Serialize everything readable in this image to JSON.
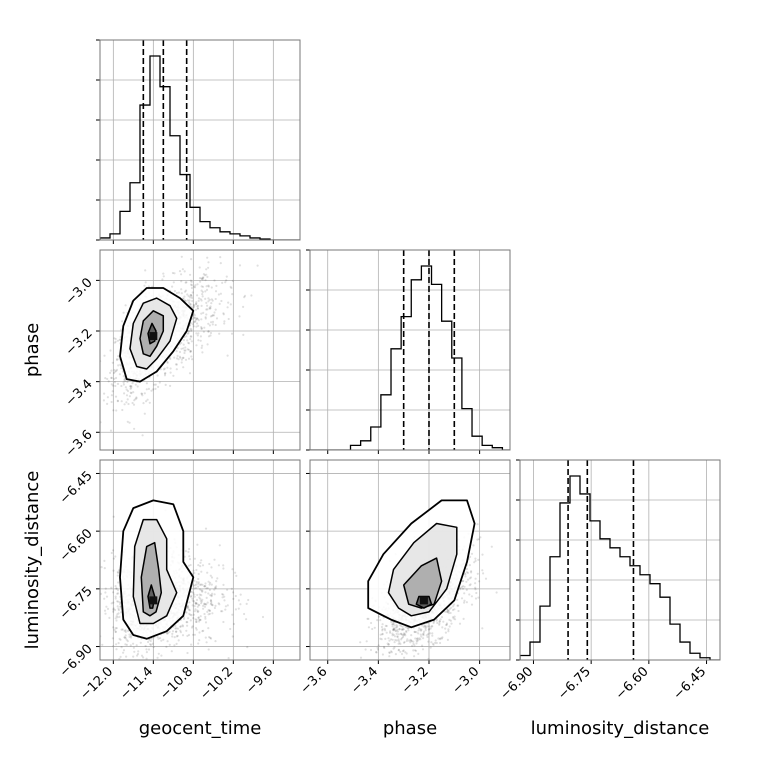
{
  "chart_data": {
    "type": "corner",
    "parameters": [
      "geocent_time",
      "phase",
      "luminosity_distance"
    ],
    "axis_labels": {
      "x": [
        "geocent_time",
        "phase",
        "luminosity_distance"
      ],
      "y": [
        "",
        "phase",
        "luminosity_distance"
      ]
    },
    "ranges": {
      "geocent_time": [
        -12.2,
        -9.2
      ],
      "phase": [
        -3.67,
        -2.88
      ],
      "luminosity_distance": [
        -6.935,
        -6.415
      ]
    },
    "ticks": {
      "geocent_time": [
        -12.0,
        -11.4,
        -10.8,
        -10.2,
        -9.6
      ],
      "phase": [
        -3.6,
        -3.4,
        -3.2,
        -3.0
      ],
      "luminosity_distance": [
        -6.9,
        -6.75,
        -6.6,
        -6.45
      ]
    },
    "tick_labels": {
      "geocent_time": [
        "−12.0",
        "−11.4",
        "−10.8",
        "−10.2",
        "−9.6"
      ],
      "phase": [
        "−3.6",
        "−3.4",
        "−3.2",
        "−3.0"
      ],
      "luminosity_distance": [
        "−6.90",
        "−6.75",
        "−6.60",
        "−6.45"
      ]
    },
    "grid": true,
    "histograms": [
      {
        "param": "geocent_time",
        "bin_edges": [
          -12.2,
          -12.05,
          -11.9,
          -11.75,
          -11.6,
          -11.45,
          -11.3,
          -11.15,
          -11.0,
          -10.85,
          -10.7,
          -10.55,
          -10.4,
          -10.25,
          -10.1,
          -9.95,
          -9.8,
          -9.65,
          -9.5,
          -9.35,
          -9.2
        ],
        "counts": [
          1,
          3,
          14,
          28,
          66,
          90,
          75,
          51,
          32,
          16,
          9,
          6,
          4,
          3,
          2,
          1,
          0.5,
          0,
          0,
          0
        ],
        "quantiles": [
          -11.55,
          -11.25,
          -10.9
        ]
      },
      {
        "param": "phase",
        "bin_edges": [
          -3.67,
          -3.63,
          -3.59,
          -3.55,
          -3.51,
          -3.47,
          -3.43,
          -3.39,
          -3.35,
          -3.31,
          -3.27,
          -3.23,
          -3.19,
          -3.15,
          -3.11,
          -3.07,
          -3.03,
          -2.99,
          -2.95,
          -2.91,
          -2.88
        ],
        "counts": [
          0,
          0,
          0,
          0,
          2,
          4,
          10,
          24,
          44,
          58,
          74,
          80,
          72,
          56,
          40,
          18,
          6,
          2,
          1,
          0
        ],
        "quantiles": [
          -3.3,
          -3.2,
          -3.1
        ]
      },
      {
        "param": "luminosity_distance",
        "bin_edges": [
          -6.935,
          -6.909,
          -6.883,
          -6.857,
          -6.831,
          -6.805,
          -6.779,
          -6.753,
          -6.727,
          -6.701,
          -6.675,
          -6.649,
          -6.623,
          -6.597,
          -6.571,
          -6.545,
          -6.519,
          -6.493,
          -6.467,
          -6.441,
          -6.415
        ],
        "counts": [
          2,
          8,
          24,
          46,
          70,
          82,
          74,
          62,
          54,
          50,
          46,
          42,
          38,
          34,
          28,
          16,
          8,
          3,
          1,
          0
        ],
        "quantiles": [
          -6.81,
          -6.76,
          -6.64
        ]
      }
    ],
    "scatter_panels": [
      {
        "x": "geocent_time",
        "y": "phase",
        "mode": [
          -11.4,
          -3.22
        ],
        "sigma_x": 0.28,
        "sigma_y": 0.11,
        "skew_x": 0.35,
        "correlation": 0.6,
        "contours": [
          [
            [
              -11.8,
              -3.39
            ],
            [
              -11.9,
              -3.3
            ],
            [
              -11.85,
              -3.18
            ],
            [
              -11.7,
              -3.08
            ],
            [
              -11.5,
              -3.03
            ],
            [
              -11.25,
              -3.03
            ],
            [
              -11.0,
              -3.07
            ],
            [
              -10.8,
              -3.12
            ],
            [
              -10.9,
              -3.2
            ],
            [
              -11.1,
              -3.28
            ],
            [
              -11.35,
              -3.36
            ],
            [
              -11.6,
              -3.4
            ]
          ],
          [
            [
              -11.65,
              -3.34
            ],
            [
              -11.75,
              -3.27
            ],
            [
              -11.7,
              -3.17
            ],
            [
              -11.55,
              -3.09
            ],
            [
              -11.35,
              -3.07
            ],
            [
              -11.15,
              -3.1
            ],
            [
              -11.05,
              -3.15
            ],
            [
              -11.15,
              -3.24
            ],
            [
              -11.35,
              -3.31
            ],
            [
              -11.5,
              -3.35
            ]
          ],
          [
            [
              -11.55,
              -3.29
            ],
            [
              -11.6,
              -3.23
            ],
            [
              -11.55,
              -3.16
            ],
            [
              -11.4,
              -3.12
            ],
            [
              -11.25,
              -3.14
            ],
            [
              -11.25,
              -3.2
            ],
            [
              -11.35,
              -3.26
            ],
            [
              -11.45,
              -3.3
            ]
          ],
          [
            [
              -11.45,
              -3.25
            ],
            [
              -11.48,
              -3.21
            ],
            [
              -11.42,
              -3.17
            ],
            [
              -11.36,
              -3.2
            ],
            [
              -11.38,
              -3.24
            ]
          ]
        ]
      },
      {
        "x": "geocent_time",
        "y": "luminosity_distance",
        "mode": [
          -11.4,
          -6.78
        ],
        "sigma_x": 0.3,
        "sigma_y": 0.065,
        "skew_x": 0.3,
        "correlation": 0.1,
        "contours": [
          [
            [
              -11.7,
              -6.87
            ],
            [
              -11.85,
              -6.83
            ],
            [
              -11.9,
              -6.72
            ],
            [
              -11.85,
              -6.6
            ],
            [
              -11.7,
              -6.54
            ],
            [
              -11.4,
              -6.52
            ],
            [
              -11.1,
              -6.53
            ],
            [
              -10.95,
              -6.6
            ],
            [
              -10.95,
              -6.68
            ],
            [
              -10.8,
              -6.72
            ],
            [
              -10.95,
              -6.82
            ],
            [
              -11.2,
              -6.86
            ],
            [
              -11.5,
              -6.88
            ]
          ],
          [
            [
              -11.6,
              -6.84
            ],
            [
              -11.7,
              -6.77
            ],
            [
              -11.68,
              -6.64
            ],
            [
              -11.55,
              -6.57
            ],
            [
              -11.35,
              -6.57
            ],
            [
              -11.2,
              -6.62
            ],
            [
              -11.2,
              -6.7
            ],
            [
              -11.05,
              -6.76
            ],
            [
              -11.2,
              -6.82
            ],
            [
              -11.4,
              -6.84
            ]
          ],
          [
            [
              -11.55,
              -6.81
            ],
            [
              -11.58,
              -6.72
            ],
            [
              -11.5,
              -6.64
            ],
            [
              -11.38,
              -6.63
            ],
            [
              -11.32,
              -6.7
            ],
            [
              -11.28,
              -6.76
            ],
            [
              -11.36,
              -6.81
            ],
            [
              -11.45,
              -6.82
            ]
          ],
          [
            [
              -11.45,
              -6.8
            ],
            [
              -11.48,
              -6.77
            ],
            [
              -11.43,
              -6.74
            ],
            [
              -11.38,
              -6.77
            ],
            [
              -11.41,
              -6.8
            ]
          ]
        ]
      },
      {
        "x": "phase",
        "y": "luminosity_distance",
        "mode": [
          -3.22,
          -6.78
        ],
        "sigma_x": 0.09,
        "sigma_y": 0.065,
        "skew_x": 0.0,
        "correlation": 0.55,
        "contours": [
          [
            [
              -3.35,
              -6.83
            ],
            [
              -3.44,
              -6.8
            ],
            [
              -3.44,
              -6.73
            ],
            [
              -3.38,
              -6.66
            ],
            [
              -3.27,
              -6.58
            ],
            [
              -3.15,
              -6.52
            ],
            [
              -3.05,
              -6.52
            ],
            [
              -3.02,
              -6.58
            ],
            [
              -3.05,
              -6.68
            ],
            [
              -3.1,
              -6.78
            ],
            [
              -3.18,
              -6.83
            ],
            [
              -3.27,
              -6.85
            ]
          ],
          [
            [
              -3.32,
              -6.8
            ],
            [
              -3.36,
              -6.76
            ],
            [
              -3.34,
              -6.7
            ],
            [
              -3.26,
              -6.63
            ],
            [
              -3.17,
              -6.58
            ],
            [
              -3.09,
              -6.59
            ],
            [
              -3.09,
              -6.66
            ],
            [
              -3.13,
              -6.75
            ],
            [
              -3.2,
              -6.81
            ],
            [
              -3.27,
              -6.82
            ]
          ],
          [
            [
              -3.28,
              -6.79
            ],
            [
              -3.3,
              -6.74
            ],
            [
              -3.23,
              -6.69
            ],
            [
              -3.17,
              -6.67
            ],
            [
              -3.15,
              -6.73
            ],
            [
              -3.18,
              -6.79
            ],
            [
              -3.23,
              -6.8
            ]
          ],
          [
            [
              -3.25,
              -6.79
            ],
            [
              -3.24,
              -6.77
            ],
            [
              -3.2,
              -6.77
            ],
            [
              -3.19,
              -6.79
            ],
            [
              -3.22,
              -6.8
            ]
          ]
        ]
      }
    ]
  }
}
